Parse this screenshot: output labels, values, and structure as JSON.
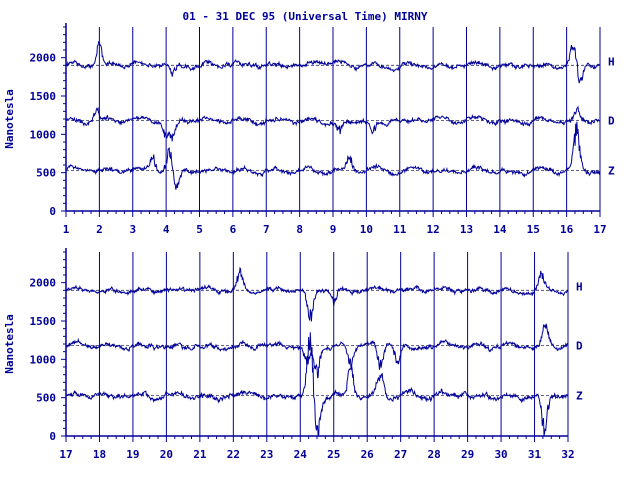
{
  "chart_data": {
    "type": "line",
    "title": "01 - 31 DEC 95 (Universal Time) MIRNY",
    "ylabel": "Nanotesla",
    "colors": {
      "line": "#000099",
      "background": "#ffffff"
    },
    "grid": "vertical day lines with dashed baselines",
    "components": [
      "H",
      "D",
      "Z"
    ],
    "panels": [
      {
        "xlim": [
          1,
          17
        ],
        "xticks": [
          "1",
          "2",
          "3",
          "4",
          "5",
          "6",
          "7",
          "8",
          "9",
          "10",
          "11",
          "12",
          "13",
          "14",
          "15",
          "16",
          "17"
        ],
        "ylim": [
          0,
          2400
        ],
        "yticks": [
          "0",
          "500",
          "1000",
          "1500",
          "2000"
        ],
        "baselines": [
          1900,
          1180,
          530
        ],
        "series": [
          {
            "name": "H",
            "baseline": 1900,
            "events": [
              [
                2.0,
                220
              ],
              [
                4.2,
                -150
              ],
              [
                16.2,
                250
              ],
              [
                16.4,
                -220
              ]
            ],
            "noise": 45
          },
          {
            "name": "D",
            "baseline": 1180,
            "events": [
              [
                1.9,
                130
              ],
              [
                4.0,
                -180
              ],
              [
                4.2,
                -220
              ],
              [
                9.2,
                -150
              ],
              [
                10.2,
                -160
              ],
              [
                16.3,
                170
              ]
            ],
            "noise": 45
          },
          {
            "name": "Z",
            "baseline": 530,
            "events": [
              [
                3.6,
                200
              ],
              [
                4.1,
                250
              ],
              [
                4.3,
                -250
              ],
              [
                9.5,
                180
              ],
              [
                16.3,
                480
              ]
            ],
            "noise": 45
          }
        ]
      },
      {
        "xlim": [
          17,
          32
        ],
        "xticks": [
          "17",
          "18",
          "19",
          "20",
          "21",
          "22",
          "23",
          "24",
          "25",
          "26",
          "27",
          "28",
          "29",
          "30",
          "31",
          "32"
        ],
        "ylim": [
          0,
          2400
        ],
        "yticks": [
          "0",
          "500",
          "1000",
          "1500",
          "2000"
        ],
        "baselines": [
          1900,
          1180,
          530
        ],
        "series": [
          {
            "name": "H",
            "baseline": 1900,
            "events": [
              [
                22.2,
                200
              ],
              [
                24.3,
                -400
              ],
              [
                25.0,
                -150
              ],
              [
                31.2,
                180
              ]
            ],
            "noise": 40
          },
          {
            "name": "D",
            "baseline": 1180,
            "events": [
              [
                24.2,
                -200
              ],
              [
                24.5,
                -350
              ],
              [
                25.5,
                -250
              ],
              [
                26.4,
                -300
              ],
              [
                26.9,
                -200
              ],
              [
                31.3,
                220
              ]
            ],
            "noise": 45
          },
          {
            "name": "Z",
            "baseline": 530,
            "events": [
              [
                24.3,
                800
              ],
              [
                24.5,
                -500
              ],
              [
                25.5,
                350
              ],
              [
                26.4,
                300
              ],
              [
                31.3,
                -500
              ]
            ],
            "noise": 50
          }
        ]
      }
    ]
  }
}
